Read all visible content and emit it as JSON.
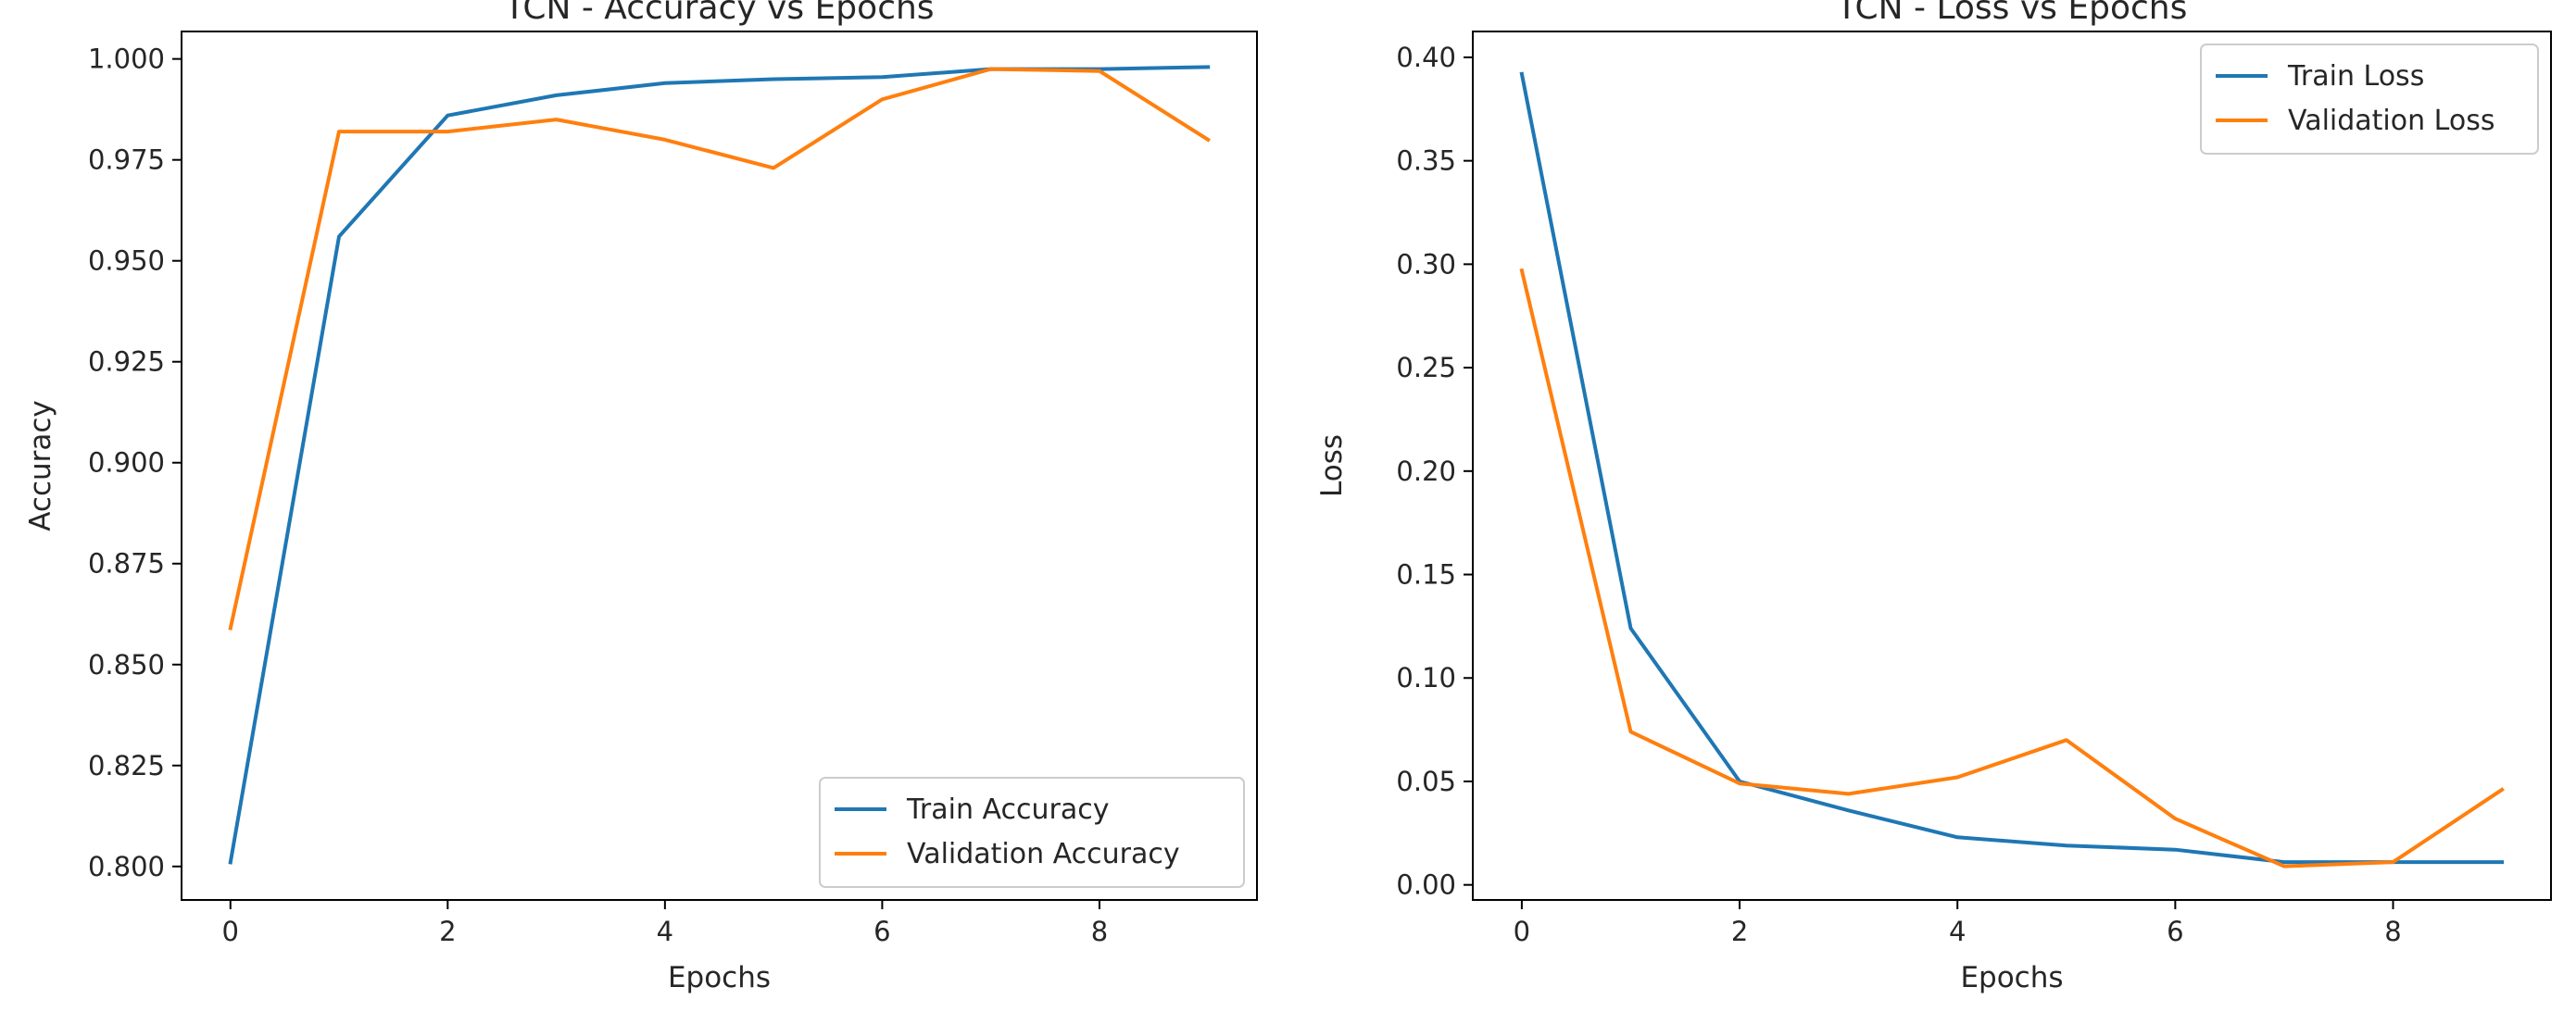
{
  "chart_data": [
    {
      "type": "line",
      "title": "TCN - Accuracy vs Epochs",
      "xlabel": "Epochs",
      "ylabel": "Accuracy",
      "x": [
        0,
        1,
        2,
        3,
        4,
        5,
        6,
        7,
        8,
        9
      ],
      "xlim": [
        -0.45,
        9.45
      ],
      "ylim": [
        0.7917,
        1.0068
      ],
      "xticks": [
        0,
        2,
        4,
        6,
        8
      ],
      "xtick_labels": [
        "0",
        "2",
        "4",
        "6",
        "8"
      ],
      "yticks": [
        0.8,
        0.825,
        0.85,
        0.875,
        0.9,
        0.925,
        0.95,
        0.975,
        1.0
      ],
      "ytick_labels": [
        "0.800",
        "0.825",
        "0.850",
        "0.875",
        "0.900",
        "0.925",
        "0.950",
        "0.975",
        "1.000"
      ],
      "grid": false,
      "legend_position": "lower-right",
      "series": [
        {
          "name": "Train Accuracy",
          "color": "#1f77b4",
          "values": [
            0.801,
            0.956,
            0.986,
            0.991,
            0.994,
            0.995,
            0.9955,
            0.9975,
            0.9975,
            0.998
          ]
        },
        {
          "name": "Validation Accuracy",
          "color": "#ff7f0e",
          "values": [
            0.859,
            0.982,
            0.982,
            0.985,
            0.98,
            0.973,
            0.99,
            0.9975,
            0.997,
            0.98
          ]
        }
      ]
    },
    {
      "type": "line",
      "title": "TCN - Loss vs Epochs",
      "xlabel": "Epochs",
      "ylabel": "Loss",
      "x": [
        0,
        1,
        2,
        3,
        4,
        5,
        6,
        7,
        8,
        9
      ],
      "xlim": [
        -0.45,
        9.45
      ],
      "ylim": [
        -0.0073,
        0.4125
      ],
      "xticks": [
        0,
        2,
        4,
        6,
        8
      ],
      "xtick_labels": [
        "0",
        "2",
        "4",
        "6",
        "8"
      ],
      "yticks": [
        0.0,
        0.05,
        0.1,
        0.15,
        0.2,
        0.25,
        0.3,
        0.35,
        0.4
      ],
      "ytick_labels": [
        "0.00",
        "0.05",
        "0.10",
        "0.15",
        "0.20",
        "0.25",
        "0.30",
        "0.35",
        "0.40"
      ],
      "grid": false,
      "legend_position": "upper-right",
      "series": [
        {
          "name": "Train Loss",
          "color": "#1f77b4",
          "values": [
            0.392,
            0.124,
            0.05,
            0.036,
            0.023,
            0.019,
            0.017,
            0.011,
            0.011,
            0.011
          ]
        },
        {
          "name": "Validation Loss",
          "color": "#ff7f0e",
          "values": [
            0.297,
            0.074,
            0.049,
            0.044,
            0.052,
            0.07,
            0.032,
            0.009,
            0.011,
            0.046
          ]
        }
      ]
    }
  ]
}
